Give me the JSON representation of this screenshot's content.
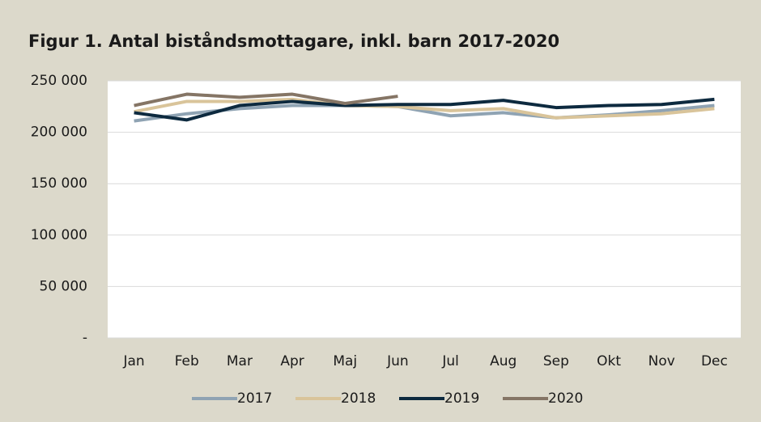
{
  "chart_data": {
    "type": "line",
    "title": "Figur 1. Antal biståndsmottagare, inkl. barn 2017-2020",
    "categories": [
      "Jan",
      "Feb",
      "Mar",
      "Apr",
      "Maj",
      "Jun",
      "Jul",
      "Aug",
      "Sep",
      "Okt",
      "Nov",
      "Dec"
    ],
    "series": [
      {
        "name": "2017",
        "color": "#8fa3b3",
        "values": [
          211000,
          218000,
          223000,
          226000,
          226000,
          225000,
          216000,
          219000,
          214000,
          217000,
          221000,
          226000
        ]
      },
      {
        "name": "2018",
        "color": "#d9c49a",
        "values": [
          220000,
          230000,
          230000,
          232000,
          226000,
          225000,
          221000,
          223000,
          214000,
          216000,
          218000,
          223000
        ]
      },
      {
        "name": "2019",
        "color": "#0d2a3f",
        "values": [
          219000,
          212000,
          226000,
          230000,
          226000,
          227000,
          227000,
          231000,
          224000,
          226000,
          227000,
          232000
        ]
      },
      {
        "name": "2020",
        "color": "#857565",
        "values": [
          226000,
          237000,
          234000,
          237000,
          228000,
          235000,
          null,
          null,
          null,
          null,
          null,
          null
        ]
      }
    ],
    "ylim": [
      0,
      250000
    ],
    "yticks": [
      {
        "value": 0,
        "label": "-"
      },
      {
        "value": 50000,
        "label": "50 000"
      },
      {
        "value": 100000,
        "label": "100 000"
      },
      {
        "value": 150000,
        "label": "150 000"
      },
      {
        "value": 200000,
        "label": "200 000"
      },
      {
        "value": 250000,
        "label": "250 000"
      }
    ],
    "grid": true
  }
}
